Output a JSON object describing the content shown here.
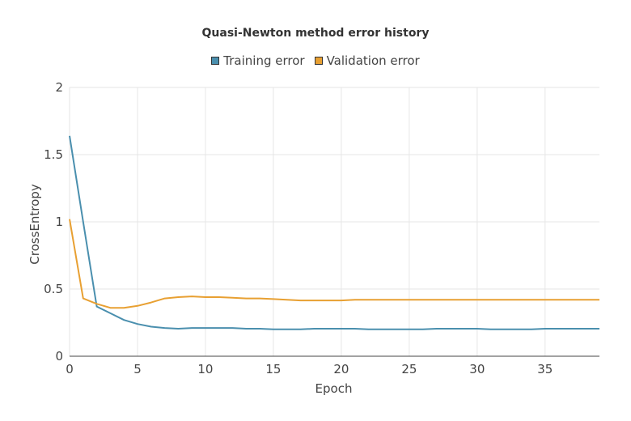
{
  "chart_data": {
    "type": "line",
    "title": "Quasi-Newton method error history",
    "xlabel": "Epoch",
    "ylabel": "CrossEntropy",
    "xlim": [
      0,
      39
    ],
    "ylim": [
      0,
      2
    ],
    "xticks": [
      0,
      5,
      10,
      15,
      20,
      25,
      30,
      35
    ],
    "yticks": [
      0,
      0.5,
      1,
      1.5,
      2
    ],
    "ytick_labels": [
      "0",
      "0.5",
      "1",
      "1.5",
      "2"
    ],
    "grid": true,
    "legend_position": "top-center",
    "series": [
      {
        "name": "Training error",
        "color": "#4a8fae",
        "x": [
          0,
          1,
          2,
          3,
          4,
          5,
          6,
          7,
          8,
          9,
          10,
          11,
          12,
          13,
          14,
          15,
          16,
          17,
          18,
          19,
          20,
          21,
          22,
          23,
          24,
          25,
          26,
          27,
          28,
          29,
          30,
          31,
          32,
          33,
          34,
          35,
          36,
          37,
          38,
          39
        ],
        "values": [
          1.64,
          1.0,
          0.37,
          0.32,
          0.27,
          0.24,
          0.22,
          0.21,
          0.205,
          0.21,
          0.21,
          0.21,
          0.21,
          0.205,
          0.205,
          0.2,
          0.2,
          0.2,
          0.205,
          0.205,
          0.205,
          0.205,
          0.2,
          0.2,
          0.2,
          0.2,
          0.2,
          0.205,
          0.205,
          0.205,
          0.205,
          0.2,
          0.2,
          0.2,
          0.2,
          0.205,
          0.205,
          0.205,
          0.205,
          0.205
        ]
      },
      {
        "name": "Validation error",
        "color": "#e8a032",
        "x": [
          0,
          1,
          2,
          3,
          4,
          5,
          6,
          7,
          8,
          9,
          10,
          11,
          12,
          13,
          14,
          15,
          16,
          17,
          18,
          19,
          20,
          21,
          22,
          23,
          24,
          25,
          26,
          27,
          28,
          29,
          30,
          31,
          32,
          33,
          34,
          35,
          36,
          37,
          38,
          39
        ],
        "values": [
          1.02,
          0.43,
          0.39,
          0.36,
          0.36,
          0.375,
          0.4,
          0.43,
          0.44,
          0.445,
          0.44,
          0.44,
          0.435,
          0.43,
          0.43,
          0.425,
          0.42,
          0.415,
          0.415,
          0.415,
          0.415,
          0.42,
          0.42,
          0.42,
          0.42,
          0.42,
          0.42,
          0.42,
          0.42,
          0.42,
          0.42,
          0.42,
          0.42,
          0.42,
          0.42,
          0.42,
          0.42,
          0.42,
          0.42,
          0.42
        ]
      }
    ]
  }
}
